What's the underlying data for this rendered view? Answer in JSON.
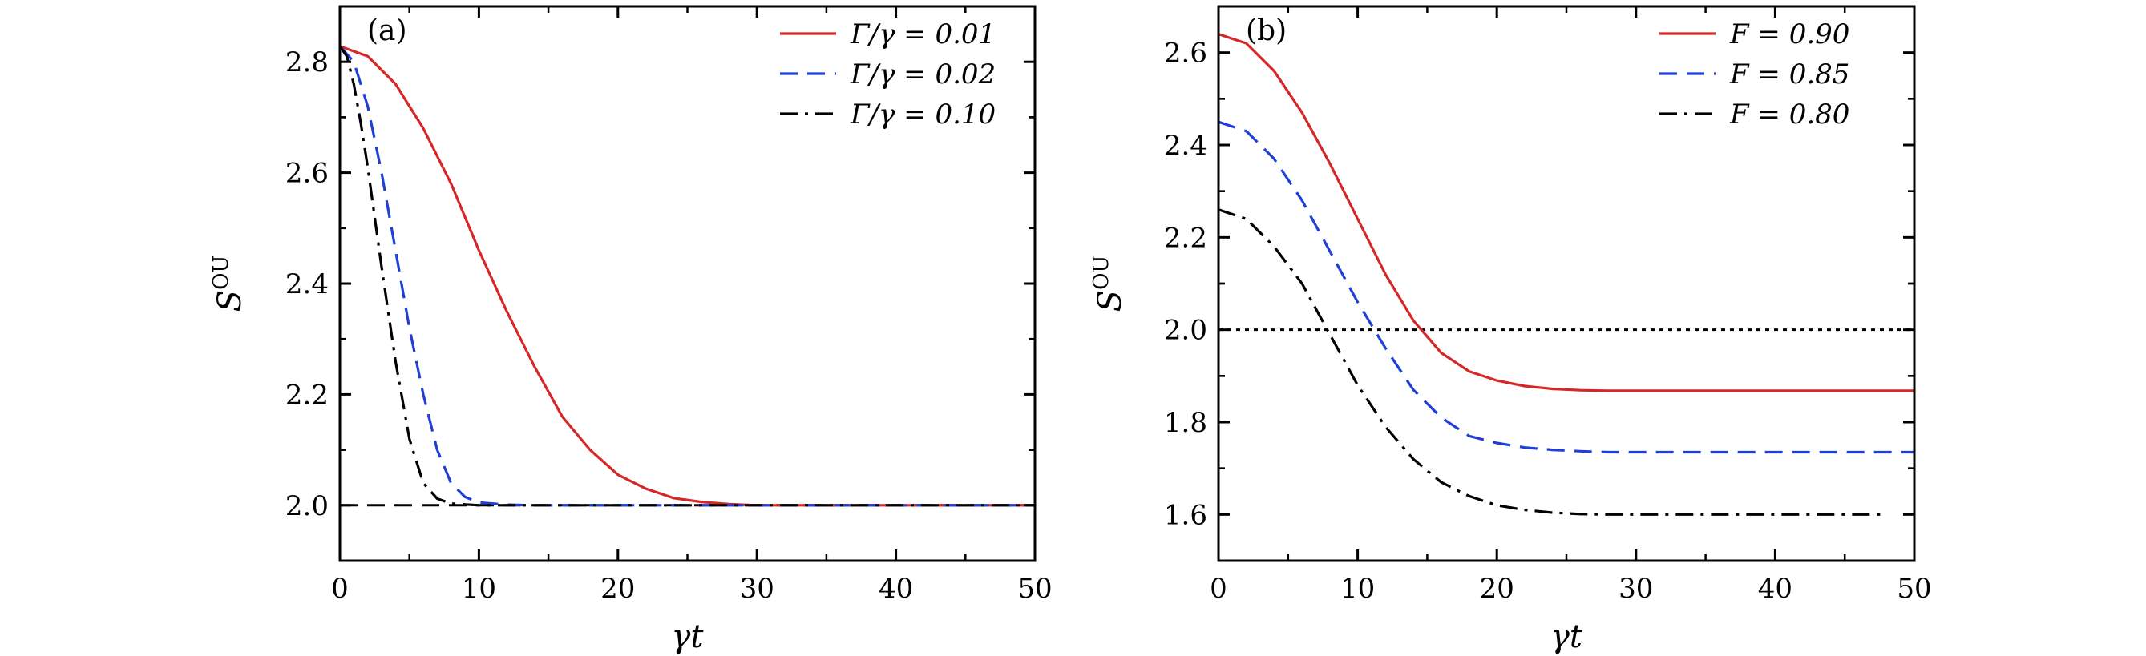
{
  "chart_data": [
    {
      "type": "line",
      "panel_label": "(a)",
      "xlabel": "γt",
      "ylabel": "S",
      "ylabel_sup": "OU",
      "xlim": [
        0,
        50
      ],
      "ylim": [
        1.9,
        2.9
      ],
      "x_ticks": [
        0,
        10,
        20,
        30,
        40,
        50
      ],
      "x_tick_labels": [
        "0",
        "10",
        "20",
        "30",
        "40",
        "50"
      ],
      "y_ticks": [
        2.0,
        2.2,
        2.4,
        2.6,
        2.8
      ],
      "y_tick_labels": [
        "2.0",
        "2.2",
        "2.4",
        "2.6",
        "2.8"
      ],
      "grid": false,
      "legend_position": "top-right",
      "reference_line": {
        "y": 2.0,
        "style": "dashed",
        "color": "#000000"
      },
      "series": [
        {
          "name": "Γ/γ = 0.01",
          "color": "#d62728",
          "style": "solid",
          "x": [
            0,
            2,
            4,
            6,
            8,
            10,
            12,
            14,
            16,
            18,
            20,
            22,
            24,
            26,
            28,
            30,
            35,
            40,
            45,
            50
          ],
          "y": [
            2.828,
            2.81,
            2.76,
            2.68,
            2.58,
            2.46,
            2.35,
            2.25,
            2.16,
            2.1,
            2.055,
            2.03,
            2.013,
            2.006,
            2.002,
            2.0,
            2.0,
            2.0,
            2.0,
            2.0
          ]
        },
        {
          "name": "Γ/γ = 0.02",
          "color": "#1f3fd6",
          "style": "dashed",
          "x": [
            0,
            1,
            2,
            3,
            4,
            5,
            6,
            7,
            8,
            9,
            10,
            12,
            14,
            16,
            20,
            30,
            40,
            50
          ],
          "y": [
            2.828,
            2.8,
            2.72,
            2.6,
            2.46,
            2.32,
            2.2,
            2.1,
            2.04,
            2.015,
            2.005,
            2.001,
            2.0,
            2.0,
            2.0,
            2.0,
            2.0,
            2.0
          ]
        },
        {
          "name": "Γ/γ = 0.10",
          "color": "#000000",
          "style": "dashdot",
          "x": [
            0,
            0.5,
            1,
            1.5,
            2,
            3,
            4,
            5,
            6,
            7,
            8,
            10,
            12,
            16,
            20,
            30,
            40,
            50
          ],
          "y": [
            2.828,
            2.81,
            2.76,
            2.69,
            2.61,
            2.43,
            2.26,
            2.12,
            2.04,
            2.012,
            2.003,
            2.0,
            2.0,
            2.0,
            2.0,
            2.0,
            2.0,
            2.0
          ]
        }
      ]
    },
    {
      "type": "line",
      "panel_label": "(b)",
      "xlabel": "γt",
      "ylabel": "S",
      "ylabel_sup": "OU",
      "xlim": [
        0,
        50
      ],
      "ylim": [
        1.5,
        2.7
      ],
      "x_ticks": [
        0,
        10,
        20,
        30,
        40,
        50
      ],
      "x_tick_labels": [
        "0",
        "10",
        "20",
        "30",
        "40",
        "50"
      ],
      "y_ticks": [
        1.6,
        1.8,
        2.0,
        2.2,
        2.4,
        2.6
      ],
      "y_tick_labels": [
        "1.6",
        "1.8",
        "2.0",
        "2.2",
        "2.4",
        "2.6"
      ],
      "grid": false,
      "legend_position": "top-right",
      "reference_line": {
        "y": 2.0,
        "style": "dotted",
        "color": "#000000"
      },
      "series": [
        {
          "name": "F = 0.90",
          "color": "#d62728",
          "style": "solid",
          "x": [
            0,
            2,
            4,
            6,
            8,
            10,
            12,
            14,
            16,
            18,
            20,
            22,
            24,
            26,
            28,
            30,
            35,
            40,
            45,
            50
          ],
          "y": [
            2.64,
            2.62,
            2.56,
            2.47,
            2.36,
            2.24,
            2.12,
            2.02,
            1.95,
            1.91,
            1.89,
            1.878,
            1.872,
            1.869,
            1.868,
            1.868,
            1.868,
            1.868,
            1.868,
            1.868
          ]
        },
        {
          "name": "F = 0.85",
          "color": "#1f3fd6",
          "style": "dashed",
          "x": [
            0,
            2,
            4,
            6,
            8,
            10,
            12,
            14,
            16,
            18,
            20,
            22,
            24,
            26,
            28,
            30,
            35,
            40,
            45,
            50
          ],
          "y": [
            2.45,
            2.43,
            2.37,
            2.28,
            2.17,
            2.06,
            1.96,
            1.87,
            1.81,
            1.77,
            1.755,
            1.745,
            1.74,
            1.737,
            1.735,
            1.735,
            1.735,
            1.735,
            1.735,
            1.735
          ]
        },
        {
          "name": "F = 0.80",
          "color": "#000000",
          "style": "dashdot",
          "x": [
            0,
            2,
            4,
            6,
            8,
            10,
            12,
            14,
            16,
            18,
            20,
            22,
            24,
            26,
            28,
            30,
            35,
            40,
            45,
            48
          ],
          "y": [
            2.26,
            2.24,
            2.18,
            2.1,
            1.99,
            1.88,
            1.79,
            1.72,
            1.67,
            1.64,
            1.62,
            1.61,
            1.604,
            1.601,
            1.6,
            1.6,
            1.6,
            1.6,
            1.6,
            1.6
          ]
        }
      ]
    }
  ]
}
